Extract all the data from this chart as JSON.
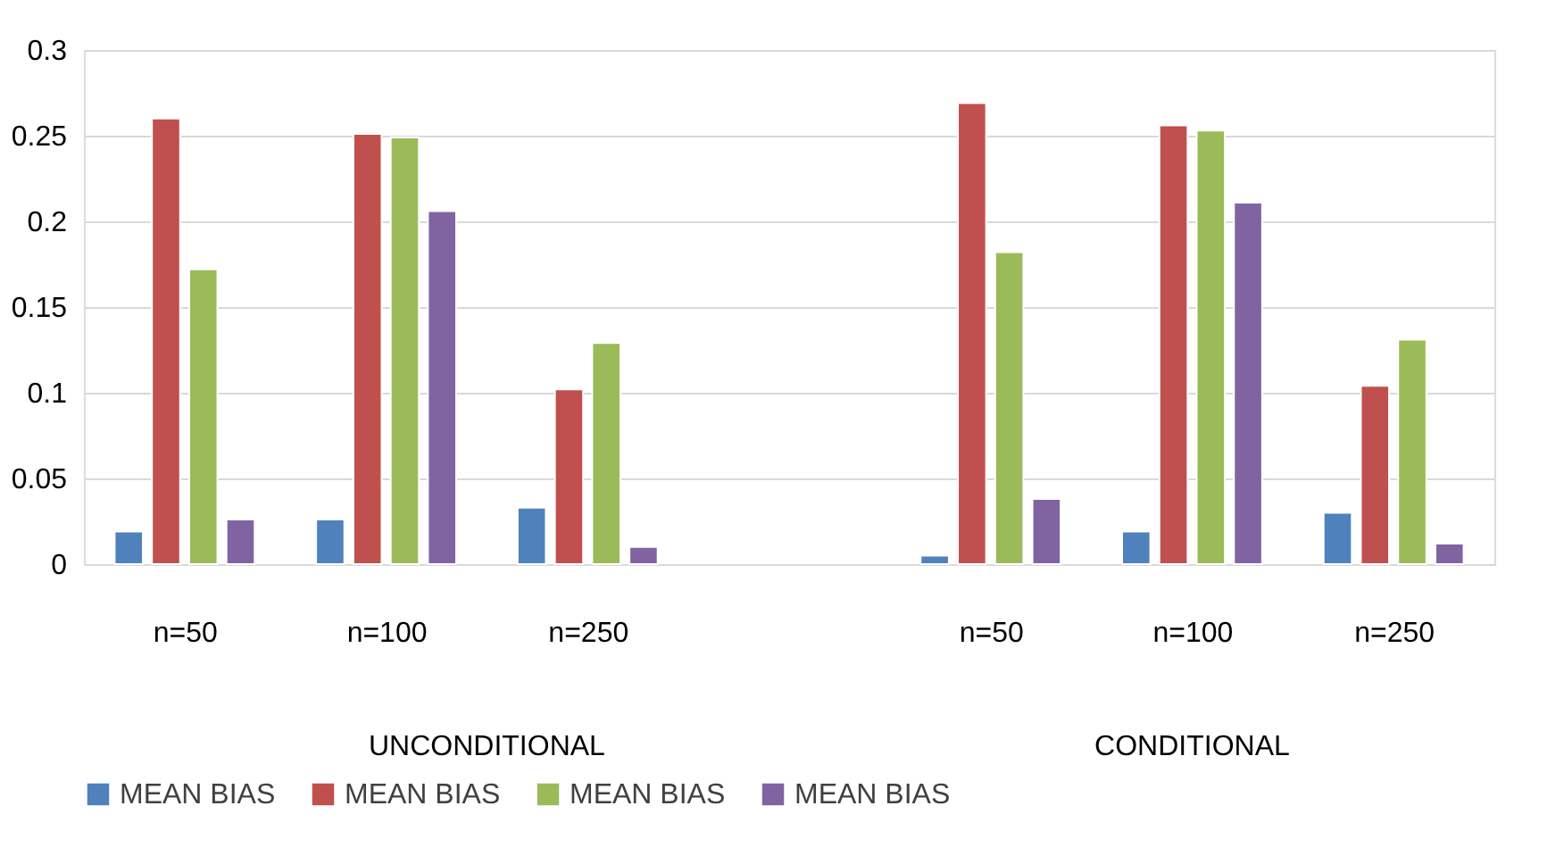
{
  "chart_data": {
    "type": "bar",
    "categories": [
      "n=50",
      "n=100",
      "n=250",
      null,
      "n=50",
      "n=100",
      "n=250"
    ],
    "series": [
      {
        "name": "MEAN BIAS",
        "color": "#4f81bd",
        "values": [
          0.019,
          0.026,
          0.033,
          null,
          0.005,
          0.019,
          0.03
        ]
      },
      {
        "name": "MEAN BIAS",
        "color": "#c0504d",
        "values": [
          0.26,
          0.251,
          0.102,
          null,
          0.269,
          0.256,
          0.104
        ]
      },
      {
        "name": "MEAN BIAS",
        "color": "#9bbb59",
        "values": [
          0.172,
          0.249,
          0.129,
          null,
          0.182,
          0.253,
          0.131
        ]
      },
      {
        "name": "MEAN BIAS",
        "color": "#8064a2",
        "values": [
          0.026,
          0.206,
          0.01,
          null,
          0.038,
          0.211,
          0.012
        ]
      }
    ],
    "annotations": [
      "UNCONDITIONAL",
      "CONDITIONAL"
    ],
    "ylim": [
      0,
      0.3
    ],
    "yticks": [
      0,
      0.05,
      0.1,
      0.15,
      0.2,
      0.25,
      0.3
    ],
    "grid": "y",
    "legend": "bottom"
  }
}
